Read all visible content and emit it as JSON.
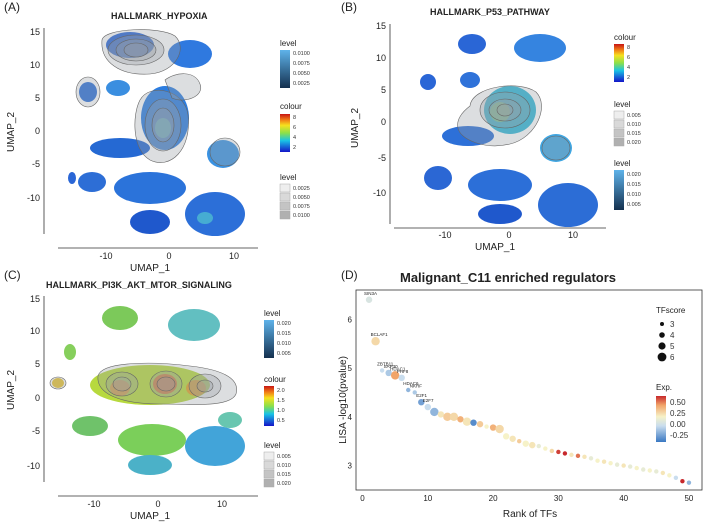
{
  "panels": {
    "A": {
      "label": "(A)",
      "title": "HALLMARK_HYPOXIA",
      "xlabel": "UMAP_1",
      "ylabel": "UMAP_2",
      "xticks": [
        "-10",
        "0",
        "10"
      ],
      "yticks": [
        "15",
        "10",
        "5",
        "0",
        "-5",
        "-10"
      ],
      "legend_level1": {
        "title": "level",
        "ticks": [
          "0.0100",
          "0.0075",
          "0.0050",
          "0.0025"
        ]
      },
      "legend_colour": {
        "title": "colour",
        "ticks": [
          "8",
          "6",
          "4",
          "2"
        ]
      },
      "legend_level2": {
        "title": "level",
        "ticks": [
          "0.0025",
          "0.0050",
          "0.0075",
          "0.0100"
        ]
      }
    },
    "B": {
      "label": "(B)",
      "title": "HALLMARK_P53_PATHWAY",
      "xlabel": "UMAP_1",
      "ylabel": "UMAP_2",
      "xticks": [
        "-10",
        "0",
        "10"
      ],
      "yticks": [
        "15",
        "10",
        "5",
        "0",
        "-5",
        "-10"
      ],
      "legend_colour": {
        "title": "colour",
        "ticks": [
          "8",
          "6",
          "4",
          "2"
        ]
      },
      "legend_level1": {
        "title": "level",
        "ticks": [
          "0.005",
          "0.010",
          "0.015",
          "0.020"
        ]
      },
      "legend_level2": {
        "title": "level",
        "ticks": [
          "0.020",
          "0.015",
          "0.010",
          "0.005"
        ]
      }
    },
    "C": {
      "label": "(C)",
      "title": "HALLMARK_PI3K_AKT_MTOR_SIGNALING",
      "xlabel": "UMAP_1",
      "ylabel": "UMAP_2",
      "xticks": [
        "-10",
        "0",
        "10"
      ],
      "yticks": [
        "15",
        "10",
        "5",
        "0",
        "-5",
        "-10"
      ],
      "legend_level1": {
        "title": "level",
        "ticks": [
          "0.020",
          "0.015",
          "0.010",
          "0.005"
        ]
      },
      "legend_colour": {
        "title": "colour",
        "ticks": [
          "2.0",
          "1.5",
          "1.0",
          "0.5"
        ]
      },
      "legend_level2": {
        "title": "level",
        "ticks": [
          "0.005",
          "0.010",
          "0.015",
          "0.020"
        ]
      }
    },
    "D": {
      "label": "(D)",
      "title": "Malignant_C11 enriched regulators",
      "xlabel": "Rank of TFs",
      "ylabel": "LISA -log10(pvalue)",
      "size_legend": {
        "title": "TFscore",
        "labels": [
          "3",
          "4",
          "5",
          "6"
        ]
      },
      "color_legend": {
        "title": "Exp.",
        "ticks": [
          "0.50",
          "0.25",
          "0.00",
          "-0.25"
        ]
      }
    }
  },
  "chart_data": [
    {
      "type": "scatter",
      "panel": "A",
      "title": "HALLMARK_HYPOXIA",
      "xlabel": "UMAP_1",
      "ylabel": "UMAP_2",
      "xlim": [
        -16,
        13
      ],
      "ylim": [
        -13,
        15.5
      ],
      "description": "UMAP embedding with density contours"
    },
    {
      "type": "scatter",
      "panel": "B",
      "title": "HALLMARK_P53_PATHWAY",
      "xlabel": "UMAP_1",
      "ylabel": "UMAP_2",
      "xlim": [
        -16,
        13
      ],
      "ylim": [
        -13,
        15.5
      ]
    },
    {
      "type": "scatter",
      "panel": "C",
      "title": "HALLMARK_PI3K_AKT_MTOR_SIGNALING",
      "xlabel": "UMAP_1",
      "ylabel": "UMAP_2",
      "xlim": [
        -16,
        13
      ],
      "ylim": [
        -13,
        15.5
      ]
    },
    {
      "type": "scatter",
      "panel": "D",
      "title": "Malignant_C11 enriched regulators",
      "xlabel": "Rank of TFs",
      "ylabel": "LISA -log10(pvalue)",
      "xlim": [
        -1,
        52
      ],
      "ylim": [
        2.5,
        6.6
      ],
      "xticks": [
        0,
        10,
        20,
        30,
        40,
        50
      ],
      "yticks": [
        3,
        4,
        5,
        6
      ],
      "points": [
        {
          "rank": 1,
          "y": 6.4,
          "label": "SIN3A",
          "score": 4,
          "exp": -0.05
        },
        {
          "rank": 2,
          "y": 5.55,
          "label": "BCLAF1",
          "score": 5,
          "exp": 0.15
        },
        {
          "rank": 3,
          "y": 4.95,
          "label": "ZBTB11",
          "score": 3,
          "exp": -0.1
        },
        {
          "rank": 4,
          "y": 4.9,
          "label": "SAP30",
          "score": 4,
          "exp": -0.15
        },
        {
          "rank": 5,
          "y": 4.85,
          "label": "HDAC1",
          "score": 5,
          "exp": 0.35
        },
        {
          "rank": 6,
          "y": 4.8,
          "label": "PHF8",
          "score": 4,
          "exp": -0.1
        },
        {
          "rank": 7,
          "y": 4.55,
          "label": "HDAC6",
          "score": 3,
          "exp": -0.2
        },
        {
          "rank": 8,
          "y": 4.5,
          "label": "NKRF",
          "score": 3,
          "exp": -0.15
        },
        {
          "rank": 9,
          "y": 4.3,
          "label": "E2F1",
          "score": 4,
          "exp": -0.25
        },
        {
          "rank": 10,
          "y": 4.2,
          "label": "E2F7",
          "score": 4,
          "exp": -0.1
        },
        {
          "rank": 11,
          "y": 4.1,
          "label": "",
          "score": 5,
          "exp": -0.2
        },
        {
          "rank": 12,
          "y": 4.05,
          "label": "",
          "score": 4,
          "exp": 0.1
        },
        {
          "rank": 13,
          "y": 4.0,
          "label": "",
          "score": 5,
          "exp": 0.2
        },
        {
          "rank": 14,
          "y": 4.0,
          "label": "",
          "score": 5,
          "exp": 0.15
        },
        {
          "rank": 15,
          "y": 3.95,
          "label": "",
          "score": 4,
          "exp": 0.3
        },
        {
          "rank": 16,
          "y": 3.9,
          "label": "",
          "score": 5,
          "exp": 0.1
        },
        {
          "rank": 17,
          "y": 3.88,
          "label": "",
          "score": 4,
          "exp": -0.3
        },
        {
          "rank": 18,
          "y": 3.85,
          "label": "",
          "score": 4,
          "exp": 0.2
        },
        {
          "rank": 19,
          "y": 3.8,
          "label": "",
          "score": 3,
          "exp": 0.05
        },
        {
          "rank": 20,
          "y": 3.78,
          "label": "",
          "score": 4,
          "exp": 0.3
        },
        {
          "rank": 21,
          "y": 3.75,
          "label": "",
          "score": 5,
          "exp": 0.15
        },
        {
          "rank": 22,
          "y": 3.6,
          "label": "",
          "score": 4,
          "exp": 0.05
        },
        {
          "rank": 23,
          "y": 3.55,
          "label": "",
          "score": 4,
          "exp": 0.1
        },
        {
          "rank": 24,
          "y": 3.5,
          "label": "",
          "score": 3,
          "exp": 0.2
        },
        {
          "rank": 25,
          "y": 3.45,
          "label": "",
          "score": 4,
          "exp": 0.05
        },
        {
          "rank": 26,
          "y": 3.42,
          "label": "",
          "score": 4,
          "exp": 0.1
        },
        {
          "rank": 27,
          "y": 3.4,
          "label": "",
          "score": 3,
          "exp": 0.0
        },
        {
          "rank": 28,
          "y": 3.35,
          "label": "",
          "score": 3,
          "exp": 0.05
        },
        {
          "rank": 29,
          "y": 3.3,
          "label": "",
          "score": 3,
          "exp": 0.15
        },
        {
          "rank": 30,
          "y": 3.28,
          "label": "",
          "score": 3,
          "exp": 0.55
        },
        {
          "rank": 31,
          "y": 3.25,
          "label": "",
          "score": 3,
          "exp": 0.6
        },
        {
          "rank": 32,
          "y": 3.22,
          "label": "",
          "score": 3,
          "exp": 0.1
        },
        {
          "rank": 33,
          "y": 3.2,
          "label": "",
          "score": 3,
          "exp": 0.45
        },
        {
          "rank": 34,
          "y": 3.18,
          "label": "",
          "score": 3,
          "exp": 0.1
        },
        {
          "rank": 35,
          "y": 3.15,
          "label": "",
          "score": 3,
          "exp": 0.0
        },
        {
          "rank": 36,
          "y": 3.1,
          "label": "",
          "score": 3,
          "exp": 0.05
        },
        {
          "rank": 37,
          "y": 3.08,
          "label": "",
          "score": 3,
          "exp": 0.1
        },
        {
          "rank": 38,
          "y": 3.05,
          "label": "",
          "score": 3,
          "exp": 0.05
        },
        {
          "rank": 39,
          "y": 3.02,
          "label": "",
          "score": 3,
          "exp": 0.0
        },
        {
          "rank": 40,
          "y": 3.0,
          "label": "",
          "score": 3,
          "exp": 0.1
        },
        {
          "rank": 41,
          "y": 2.98,
          "label": "",
          "score": 3,
          "exp": 0.0
        },
        {
          "rank": 42,
          "y": 2.95,
          "label": "",
          "score": 3,
          "exp": 0.05
        },
        {
          "rank": 43,
          "y": 2.92,
          "label": "",
          "score": 3,
          "exp": 0.0
        },
        {
          "rank": 44,
          "y": 2.9,
          "label": "",
          "score": 3,
          "exp": 0.05
        },
        {
          "rank": 45,
          "y": 2.88,
          "label": "",
          "score": 3,
          "exp": 0.0
        },
        {
          "rank": 46,
          "y": 2.85,
          "label": "",
          "score": 3,
          "exp": 0.1
        },
        {
          "rank": 47,
          "y": 2.8,
          "label": "",
          "score": 3,
          "exp": 0.05
        },
        {
          "rank": 48,
          "y": 2.75,
          "label": "",
          "score": 3,
          "exp": -0.1
        },
        {
          "rank": 49,
          "y": 2.68,
          "label": "",
          "score": 3,
          "exp": 0.6
        },
        {
          "rank": 50,
          "y": 2.65,
          "label": "",
          "score": 3,
          "exp": -0.2
        }
      ]
    }
  ]
}
